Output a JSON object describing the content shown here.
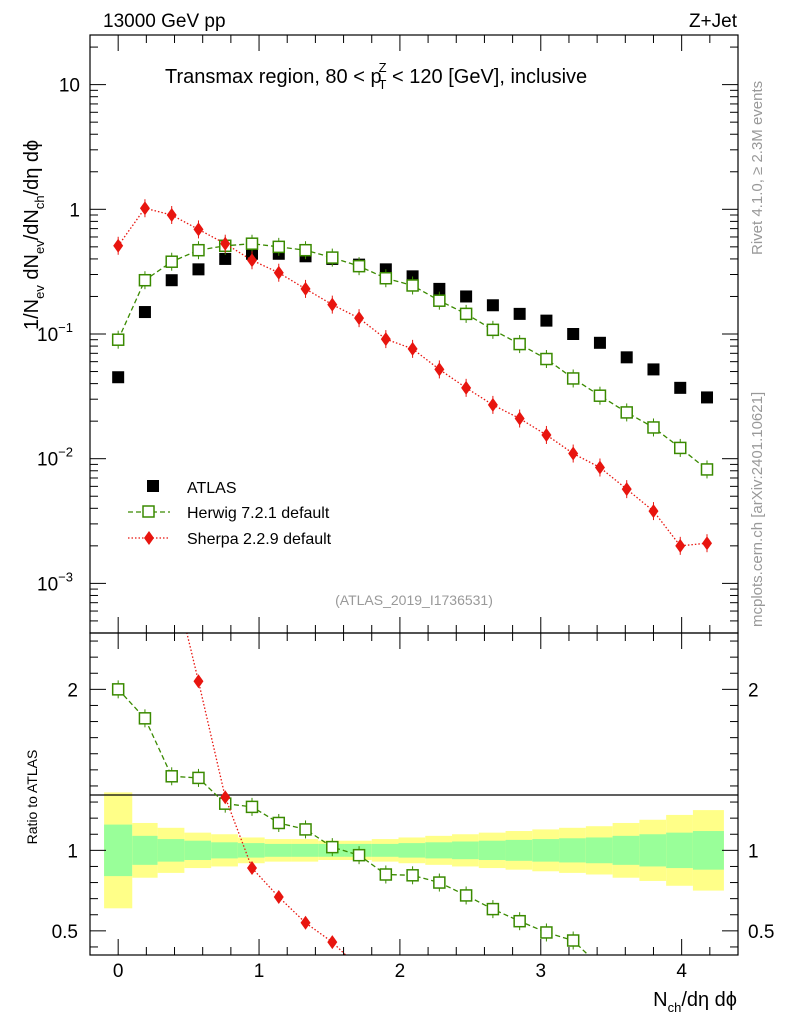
{
  "header": {
    "left": "13000 GeV pp",
    "right": "Z+Jet"
  },
  "side_label": {
    "rivet": "Rivet 4.1.0, ≥ 2.3M events",
    "mcplots": "mcplots.cern.ch [arXiv:2401.10621]"
  },
  "chart_data": [
    {
      "type": "scatter",
      "panel": "main",
      "title": "Transmax region, 80 < p_T^Z < 120 [GeV], inclusive",
      "title_parts": [
        "Transmax region, 80 < p",
        "Z",
        "T",
        " < 120 [GeV], inclusive"
      ],
      "ylabel": "1/N_ev dN_ev/dN_ch/dη dϕ",
      "ylabel_parts": [
        "1/N",
        "ev",
        " dN",
        "ev",
        "/dN",
        "ch",
        "/dη dϕ"
      ],
      "yscale": "log",
      "ylim": [
        0.0004,
        25
      ],
      "xlim": [
        -0.2,
        4.4
      ],
      "x_ticks": [
        0,
        1,
        2,
        3,
        4
      ],
      "y_tick_labels": [
        {
          "value": 10,
          "base": "10",
          "exp": ""
        },
        {
          "value": 1,
          "base": "1",
          "exp": ""
        },
        {
          "value": 0.1,
          "base": "10",
          "exp": "−1"
        },
        {
          "value": 0.01,
          "base": "10",
          "exp": "−2"
        },
        {
          "value": 0.001,
          "base": "10",
          "exp": "−3"
        }
      ],
      "analysis_tag": "(ATLAS_2019_I1736531)",
      "legend_position": "bottom-left",
      "x": [
        0,
        0.19,
        0.38,
        0.57,
        0.76,
        0.95,
        1.14,
        1.33,
        1.52,
        1.71,
        1.9,
        2.09,
        2.28,
        2.47,
        2.66,
        2.85,
        3.04,
        3.23,
        3.42,
        3.61,
        3.8,
        3.99,
        4.18
      ],
      "series": [
        {
          "name": "ATLAS",
          "marker": "square-filled",
          "color": "#000000",
          "values": [
            0.045,
            0.15,
            0.27,
            0.33,
            0.4,
            0.44,
            0.44,
            0.42,
            0.4,
            0.36,
            0.33,
            0.29,
            0.23,
            0.2,
            0.17,
            0.145,
            0.128,
            0.1,
            0.085,
            0.065,
            0.052,
            0.037,
            0.031
          ]
        },
        {
          "name": "Herwig 7.2.1 default",
          "marker": "square-open",
          "line": "dashed",
          "color": "#3a8a00",
          "values": [
            0.09,
            0.27,
            0.38,
            0.47,
            0.51,
            0.53,
            0.5,
            0.47,
            0.41,
            0.35,
            0.28,
            0.245,
            0.185,
            0.145,
            0.108,
            0.083,
            0.063,
            0.044,
            0.032,
            0.0235,
            0.0178,
            0.0122,
            0.0082
          ]
        },
        {
          "name": "Sherpa 2.2.9 default",
          "marker": "diamond-filled",
          "line": "dotted",
          "color": "#e8150f",
          "values": [
            0.51,
            1.02,
            0.9,
            0.69,
            0.53,
            0.39,
            0.31,
            0.23,
            0.172,
            0.134,
            0.091,
            0.076,
            0.052,
            0.037,
            0.027,
            0.021,
            0.0155,
            0.011,
            0.0085,
            0.0057,
            0.0038,
            0.002,
            0.0021
          ]
        }
      ]
    },
    {
      "type": "line",
      "panel": "ratio",
      "ylabel": "Ratio to ATLAS",
      "xlabel": "N_ch/dη dϕ",
      "xlabel_parts": [
        "N",
        "ch",
        "/dη dϕ"
      ],
      "xlim": [
        -0.2,
        4.4
      ],
      "ylim": [
        0.35,
        2.35
      ],
      "x_ticks": [
        0,
        1,
        2,
        3,
        4
      ],
      "y_ticks": [
        0.5,
        1,
        2
      ],
      "y_tick_labels": [
        "0.5",
        "1",
        "2"
      ],
      "bins": [
        -0.1,
        0.1,
        0.28,
        0.47,
        0.66,
        0.85,
        1.04,
        1.23,
        1.42,
        1.61,
        1.8,
        1.99,
        2.18,
        2.37,
        2.56,
        2.75,
        2.94,
        3.13,
        3.32,
        3.51,
        3.7,
        3.89,
        4.08,
        4.3
      ],
      "band_inner": [
        0.16,
        0.09,
        0.07,
        0.06,
        0.05,
        0.045,
        0.04,
        0.04,
        0.04,
        0.04,
        0.04,
        0.045,
        0.05,
        0.055,
        0.06,
        0.065,
        0.07,
        0.075,
        0.08,
        0.09,
        0.1,
        0.11,
        0.12
      ],
      "band_outer": [
        0.36,
        0.17,
        0.14,
        0.11,
        0.1,
        0.08,
        0.07,
        0.07,
        0.06,
        0.06,
        0.07,
        0.08,
        0.09,
        0.1,
        0.11,
        0.12,
        0.13,
        0.14,
        0.15,
        0.17,
        0.19,
        0.22,
        0.25
      ],
      "x": [
        0,
        0.19,
        0.38,
        0.57,
        0.76,
        0.95,
        1.14,
        1.33,
        1.52,
        1.71,
        1.9,
        2.09,
        2.28,
        2.47,
        2.66,
        2.85,
        3.04,
        3.23
      ],
      "series": [
        {
          "name": "Herwig 7.2.1 default",
          "marker": "square-open",
          "line": "dashed",
          "color": "#3a8a00",
          "values": [
            2.0,
            1.82,
            1.46,
            1.45,
            1.29,
            1.27,
            1.17,
            1.13,
            1.02,
            0.97,
            0.85,
            0.845,
            0.8,
            0.72,
            0.635,
            0.56,
            0.49,
            0.44
          ]
        },
        {
          "name": "Sherpa 2.2.9 default",
          "marker": "diamond-filled",
          "line": "dotted",
          "color": "#e8150f",
          "x": [
            0.57,
            0.76,
            0.95,
            1.14,
            1.33,
            1.52
          ],
          "values": [
            2.05,
            1.33,
            0.89,
            0.71,
            0.55,
            0.43
          ]
        }
      ]
    }
  ]
}
